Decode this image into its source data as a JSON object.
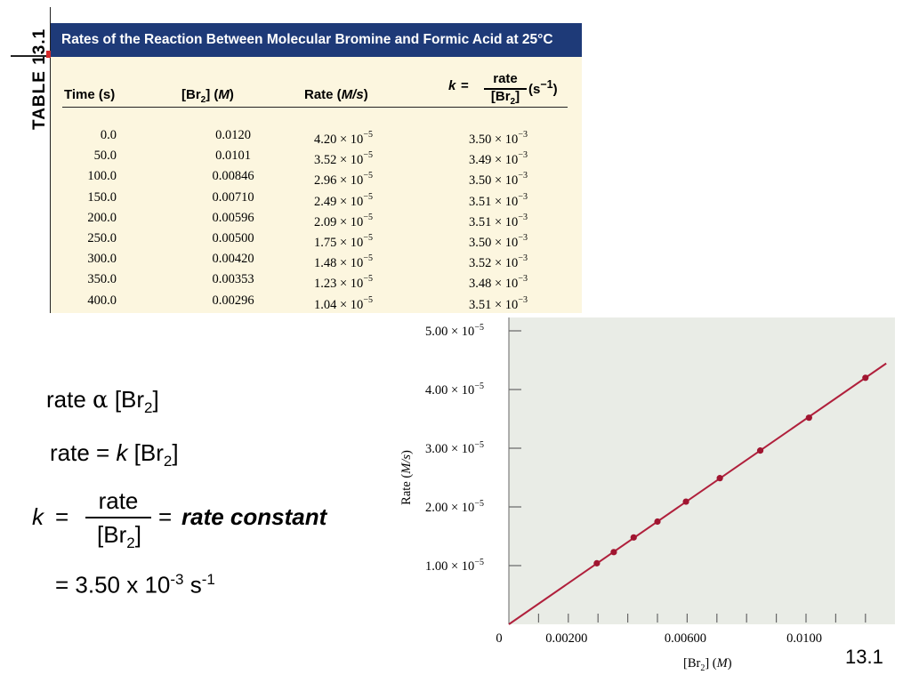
{
  "table": {
    "tag_label": "TABLE",
    "tag_number": "13.1",
    "title": "Rates of the Reaction Between Molecular Bromine and Formic Acid at 25°C",
    "headers": {
      "time": "Time (s)",
      "br2_pre": "[Br",
      "br2_sub": "2",
      "br2_post": "] (",
      "br2_unit": "M",
      "br2_close": ")",
      "rate_pre": "Rate (",
      "rate_unit": "M/s",
      "rate_close": ")",
      "k_letter": "k",
      "k_eq": "=",
      "k_num": "rate",
      "k_den_pre": "[Br",
      "k_den_sub": "2",
      "k_den_post": "]",
      "k_unit_pre": "(s",
      "k_unit_exp": "−1",
      "k_unit_post": ")"
    },
    "rows": [
      {
        "time": "0.0",
        "br2": "0.0120",
        "rate_mant": "4.20 × 10",
        "rate_exp": "−5",
        "k_mant": "3.50 × 10",
        "k_exp": "−3"
      },
      {
        "time": "50.0",
        "br2": "0.0101",
        "rate_mant": "3.52 × 10",
        "rate_exp": "−5",
        "k_mant": "3.49 × 10",
        "k_exp": "−3"
      },
      {
        "time": "100.0",
        "br2": "0.00846",
        "rate_mant": "2.96 × 10",
        "rate_exp": "−5",
        "k_mant": "3.50 × 10",
        "k_exp": "−3"
      },
      {
        "time": "150.0",
        "br2": "0.00710",
        "rate_mant": "2.49 × 10",
        "rate_exp": "−5",
        "k_mant": "3.51 × 10",
        "k_exp": "−3"
      },
      {
        "time": "200.0",
        "br2": "0.00596",
        "rate_mant": "2.09 × 10",
        "rate_exp": "−5",
        "k_mant": "3.51 × 10",
        "k_exp": "−3"
      },
      {
        "time": "250.0",
        "br2": "0.00500",
        "rate_mant": "1.75 × 10",
        "rate_exp": "−5",
        "k_mant": "3.50 × 10",
        "k_exp": "−3"
      },
      {
        "time": "300.0",
        "br2": "0.00420",
        "rate_mant": "1.48 × 10",
        "rate_exp": "−5",
        "k_mant": "3.52 × 10",
        "k_exp": "−3"
      },
      {
        "time": "350.0",
        "br2": "0.00353",
        "rate_mant": "1.23 × 10",
        "rate_exp": "−5",
        "k_mant": "3.48 × 10",
        "k_exp": "−3"
      },
      {
        "time": "400.0",
        "br2": "0.00296",
        "rate_mant": "1.04 × 10",
        "rate_exp": "−5",
        "k_mant": "3.51 × 10",
        "k_exp": "−3"
      }
    ]
  },
  "equations": {
    "proportional": {
      "pre": "rate ",
      "alpha": "α",
      "post": " [Br",
      "sub": "2",
      "close": "]"
    },
    "rate_law": {
      "pre": "rate = ",
      "k": "k",
      "post": " [Br",
      "sub": "2",
      "close": "]"
    },
    "definition": {
      "k": "k",
      "eq1": "=",
      "num": "rate",
      "den_pre": "[Br",
      "den_sub": "2",
      "den_post": "]",
      "eq2": "=",
      "term": "rate constant"
    },
    "value": {
      "pre": "= 3.50 x 10",
      "exp": "-3",
      "unit": " s",
      "unit_exp": "-1"
    }
  },
  "footer_label": "13.1",
  "chart_data": {
    "type": "scatter",
    "xlabel_pre": "[Br",
    "xlabel_sub": "2",
    "xlabel_post": "] (",
    "xlabel_unit": "M",
    "xlabel_close": ")",
    "ylabel_pre": "Rate (",
    "ylabel_unit": "M/s",
    "ylabel_close": ")",
    "xlim": [
      0,
      0.013
    ],
    "ylim": [
      0,
      5e-05
    ],
    "x_tick_values": [
      0.001,
      0.002,
      0.003,
      0.004,
      0.005,
      0.006,
      0.007,
      0.008,
      0.009,
      0.01,
      0.011,
      0.012
    ],
    "x_tick_labels": [
      {
        "value": 0,
        "text": "0"
      },
      {
        "value": 0.002,
        "text": "0.00200"
      },
      {
        "value": 0.006,
        "text": "0.00600"
      },
      {
        "value": 0.01,
        "text": "0.0100"
      }
    ],
    "y_ticks": [
      {
        "value": 1e-05,
        "mant": "1.00 × 10",
        "exp": "−5"
      },
      {
        "value": 2e-05,
        "mant": "2.00 × 10",
        "exp": "−5"
      },
      {
        "value": 3e-05,
        "mant": "3.00 × 10",
        "exp": "−5"
      },
      {
        "value": 4e-05,
        "mant": "4.00 × 10",
        "exp": "−5"
      },
      {
        "value": 5e-05,
        "mant": "5.00 × 10",
        "exp": "−5"
      }
    ],
    "points": [
      {
        "x": 0.012,
        "y": 4.2e-05
      },
      {
        "x": 0.0101,
        "y": 3.52e-05
      },
      {
        "x": 0.00846,
        "y": 2.96e-05
      },
      {
        "x": 0.0071,
        "y": 2.49e-05
      },
      {
        "x": 0.00596,
        "y": 2.09e-05
      },
      {
        "x": 0.005,
        "y": 1.75e-05
      },
      {
        "x": 0.0042,
        "y": 1.48e-05
      },
      {
        "x": 0.00353,
        "y": 1.23e-05
      },
      {
        "x": 0.00296,
        "y": 1.04e-05
      }
    ],
    "fit_line": {
      "slope": 0.0035,
      "x_range": [
        0,
        0.0127
      ]
    },
    "colors": {
      "plot_bg": "#e9ece6",
      "line": "#b0203c",
      "points": "#a01530",
      "axis": "#666666"
    }
  }
}
